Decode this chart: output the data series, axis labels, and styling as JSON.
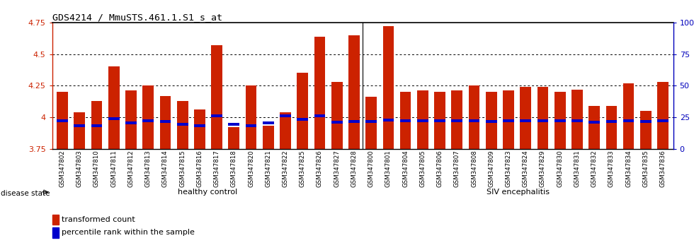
{
  "title": "GDS4214 / MmuSTS.461.1.S1_s_at",
  "samples": [
    "GSM347802",
    "GSM347803",
    "GSM347810",
    "GSM347811",
    "GSM347812",
    "GSM347813",
    "GSM347814",
    "GSM347815",
    "GSM347816",
    "GSM347817",
    "GSM347818",
    "GSM347820",
    "GSM347821",
    "GSM347822",
    "GSM347825",
    "GSM347826",
    "GSM347827",
    "GSM347828",
    "GSM347800",
    "GSM347801",
    "GSM347804",
    "GSM347805",
    "GSM347806",
    "GSM347807",
    "GSM347808",
    "GSM347809",
    "GSM347823",
    "GSM347824",
    "GSM347829",
    "GSM347830",
    "GSM347831",
    "GSM347832",
    "GSM347833",
    "GSM347834",
    "GSM347835",
    "GSM347836"
  ],
  "bar_values": [
    4.2,
    4.04,
    4.13,
    4.4,
    4.21,
    4.25,
    4.17,
    4.13,
    4.06,
    4.57,
    3.92,
    4.25,
    3.93,
    4.04,
    4.35,
    4.64,
    4.28,
    4.65,
    4.16,
    4.72,
    4.2,
    4.21,
    4.2,
    4.21,
    4.25,
    4.2,
    4.21,
    4.24,
    4.24,
    4.2,
    4.22,
    4.09,
    4.09,
    4.27,
    4.05,
    4.28
  ],
  "percentile_values": [
    3.97,
    3.935,
    3.935,
    3.99,
    3.955,
    3.97,
    3.965,
    3.945,
    3.935,
    4.01,
    3.945,
    3.935,
    3.955,
    4.01,
    3.985,
    4.01,
    3.96,
    3.965,
    3.965,
    3.975,
    3.97,
    3.97,
    3.97,
    3.97,
    3.97,
    3.965,
    3.97,
    3.97,
    3.97,
    3.97,
    3.97,
    3.96,
    3.965,
    3.97,
    3.965,
    3.97
  ],
  "ymin": 3.75,
  "ymax": 4.75,
  "yticks_left": [
    3.75,
    4.0,
    4.25,
    4.5,
    4.75
  ],
  "yticks_left_labels": [
    "3.75",
    "4",
    "4.25",
    "4.5",
    "4.75"
  ],
  "yticks_right": [
    0,
    25,
    50,
    75,
    100
  ],
  "yticks_right_labels": [
    "0",
    "25",
    "50",
    "75",
    "100%"
  ],
  "bar_color": "#CC2200",
  "percentile_color": "#0000CC",
  "bg_color": "#FFFFFF",
  "healthy_count": 18,
  "siv_count": 18,
  "healthy_label": "healthy control",
  "siv_label": "SIV encephalitis",
  "disease_label": "disease state",
  "legend_bar_label": "transformed count",
  "legend_pct_label": "percentile rank within the sample",
  "group_healthy_color": "#CCFFCC",
  "group_siv_color": "#55CC55",
  "left_axis_color": "#CC2200",
  "right_axis_color": "#0000BB"
}
